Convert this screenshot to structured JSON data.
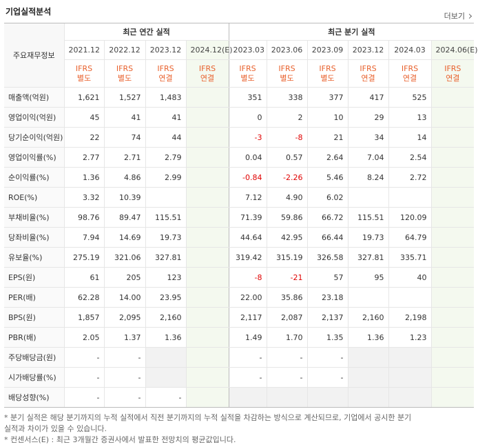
{
  "header": {
    "title": "기업실적분석",
    "more": "더보기"
  },
  "table": {
    "corner": "주요재무정보",
    "groups": [
      {
        "label": "최근 연간 실적",
        "columns": [
          {
            "period": "2021.12",
            "basis": [
              "IFRS",
              "별도"
            ]
          },
          {
            "period": "2022.12",
            "basis": [
              "IFRS",
              "별도"
            ]
          },
          {
            "period": "2023.12",
            "basis": [
              "IFRS",
              "연결"
            ]
          },
          {
            "period": "2024.12(E)",
            "basis": [
              "IFRS",
              "연결"
            ]
          }
        ]
      },
      {
        "label": "최근 분기 실적",
        "columns": [
          {
            "period": "2023.03",
            "basis": [
              "IFRS",
              "별도"
            ]
          },
          {
            "period": "2023.06",
            "basis": [
              "IFRS",
              "별도"
            ]
          },
          {
            "period": "2023.09",
            "basis": [
              "IFRS",
              "별도"
            ]
          },
          {
            "period": "2023.12",
            "basis": [
              "IFRS",
              "연결"
            ]
          },
          {
            "period": "2024.03",
            "basis": [
              "IFRS",
              "연결"
            ]
          },
          {
            "period": "2024.06(E)",
            "basis": [
              "IFRS",
              "연결"
            ]
          }
        ]
      }
    ],
    "sections": [
      [
        {
          "label": "매출액(억원)",
          "values": [
            "1,621",
            "1,527",
            "1,483",
            null,
            "351",
            "338",
            "377",
            "417",
            "525",
            null
          ]
        },
        {
          "label": "영업이익(억원)",
          "values": [
            "45",
            "41",
            "41",
            null,
            "0",
            "2",
            "10",
            "29",
            "13",
            null
          ]
        },
        {
          "label": "당기순이익(억원)",
          "values": [
            "22",
            "74",
            "44",
            null,
            "-3",
            "-8",
            "21",
            "34",
            "14",
            null
          ]
        }
      ],
      [
        {
          "label": "영업이익률(%)",
          "values": [
            "2.77",
            "2.71",
            "2.79",
            null,
            "0.04",
            "0.57",
            "2.64",
            "7.04",
            "2.54",
            null
          ]
        },
        {
          "label": "순이익률(%)",
          "values": [
            "1.36",
            "4.86",
            "2.99",
            null,
            "-0.84",
            "-2.26",
            "5.46",
            "8.24",
            "2.72",
            null
          ]
        },
        {
          "label": "ROE(%)",
          "values": [
            "3.32",
            "10.39",
            null,
            null,
            "7.12",
            "4.90",
            "6.02",
            null,
            null,
            null
          ]
        }
      ],
      [
        {
          "label": "부채비율(%)",
          "values": [
            "98.76",
            "89.47",
            "115.51",
            null,
            "71.39",
            "59.86",
            "66.72",
            "115.51",
            "120.09",
            null
          ]
        },
        {
          "label": "당좌비율(%)",
          "values": [
            "7.94",
            "14.69",
            "19.73",
            null,
            "44.64",
            "42.95",
            "66.44",
            "19.73",
            "64.79",
            null
          ]
        },
        {
          "label": "유보율(%)",
          "values": [
            "275.19",
            "321.06",
            "327.81",
            null,
            "319.42",
            "315.19",
            "326.58",
            "327.81",
            "335.71",
            null
          ]
        }
      ],
      [
        {
          "label": "EPS(원)",
          "values": [
            "61",
            "205",
            "123",
            null,
            "-8",
            "-21",
            "57",
            "95",
            "40",
            null
          ]
        },
        {
          "label": "PER(배)",
          "values": [
            "62.28",
            "14.00",
            "23.95",
            null,
            "22.00",
            "35.86",
            "23.18",
            null,
            null,
            null
          ]
        },
        {
          "label": "BPS(원)",
          "values": [
            "1,857",
            "2,095",
            "2,160",
            null,
            "2,117",
            "2,087",
            "2,137",
            "2,160",
            "2,198",
            null
          ]
        },
        {
          "label": "PBR(배)",
          "values": [
            "2.05",
            "1.37",
            "1.36",
            null,
            "1.49",
            "1.70",
            "1.35",
            "1.36",
            "1.23",
            null
          ]
        }
      ],
      [
        {
          "label": "주당배당금(원)",
          "values": [
            "-",
            "-",
            null,
            null,
            "-",
            "-",
            "-",
            null,
            null,
            null
          ]
        },
        {
          "label": "시가배당률(%)",
          "values": [
            "-",
            "-",
            null,
            null,
            "-",
            "-",
            "-",
            null,
            null,
            null
          ]
        },
        {
          "label": "배당성향(%)",
          "values": [
            "-",
            "-",
            "-",
            null,
            null,
            null,
            null,
            null,
            null,
            null
          ]
        }
      ]
    ]
  },
  "notes": [
    "* 분기 실적은 해당 분기까지의 누적 실적에서 직전 분기까지의 누적 실적을 차감하는 방식으로 계산되므로, 기업에서 공시한 분기 실적과 차이가 있을 수 있습니다.",
    "* 컨센서스(E) : 최근 3개월간 증권사에서 발표한 전망치의 평균값입니다."
  ]
}
